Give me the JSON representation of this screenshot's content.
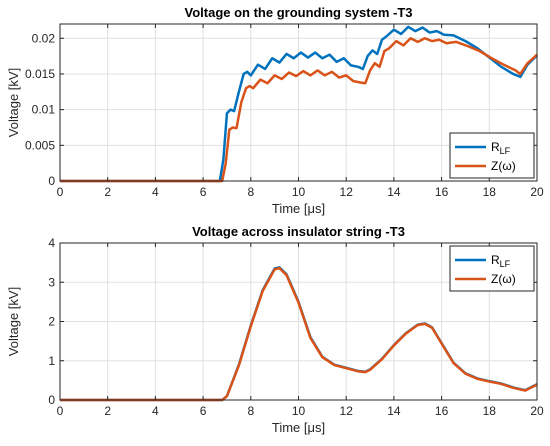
{
  "chart_data": [
    {
      "type": "line",
      "title": "Voltage on the grounding system -T3",
      "xlabel_main": "Time [",
      "xlabel_unit": "μs",
      "xlabel_end": "]",
      "ylabel": "Voltage [kV]",
      "xlim": [
        0,
        20
      ],
      "ylim": [
        0,
        0.022
      ],
      "xticks": [
        0,
        2,
        4,
        6,
        8,
        10,
        12,
        14,
        16,
        18,
        20
      ],
      "xtick_labels": [
        "0",
        "2",
        "4",
        "6",
        "8",
        "10",
        "12",
        "14",
        "16",
        "18",
        "20"
      ],
      "yticks": [
        0,
        0.005,
        0.01,
        0.015,
        0.02
      ],
      "ytick_labels": [
        "0",
        "0.005",
        "0.01",
        "0.015",
        "0.02"
      ],
      "grid": true,
      "legend_position": "bottom-right",
      "series": [
        {
          "legend_main": "R",
          "legend_sub": "LF",
          "color": "#0072BD",
          "x": [
            0,
            6.7,
            6.85,
            7.0,
            7.15,
            7.3,
            7.5,
            7.7,
            7.85,
            8.0,
            8.3,
            8.6,
            8.9,
            9.2,
            9.5,
            9.8,
            10.1,
            10.4,
            10.7,
            11.0,
            11.3,
            11.6,
            11.9,
            12.2,
            12.5,
            12.7,
            12.9,
            13.1,
            13.3,
            13.5,
            13.7,
            14.0,
            14.3,
            14.6,
            14.9,
            15.2,
            15.5,
            15.8,
            16.1,
            16.5,
            17.0,
            17.5,
            18.0,
            18.5,
            19.0,
            19.3,
            19.6,
            20.0
          ],
          "y": [
            0,
            0,
            0.003,
            0.0095,
            0.01,
            0.0098,
            0.0125,
            0.015,
            0.0153,
            0.0148,
            0.0163,
            0.0157,
            0.0172,
            0.0166,
            0.0178,
            0.0172,
            0.018,
            0.0173,
            0.018,
            0.0172,
            0.0177,
            0.0167,
            0.0172,
            0.0162,
            0.016,
            0.0157,
            0.0175,
            0.0183,
            0.0178,
            0.0198,
            0.0203,
            0.0212,
            0.0206,
            0.0216,
            0.021,
            0.0215,
            0.0208,
            0.021,
            0.0205,
            0.0204,
            0.0196,
            0.0186,
            0.0173,
            0.016,
            0.015,
            0.0146,
            0.0163,
            0.0176
          ]
        },
        {
          "legend_main": "Z(",
          "legend_sub": "ω",
          "legend_end": ")",
          "color": "#D95319",
          "x": [
            0,
            6.8,
            6.95,
            7.1,
            7.25,
            7.4,
            7.6,
            7.8,
            7.95,
            8.1,
            8.4,
            8.7,
            9.0,
            9.3,
            9.6,
            9.9,
            10.2,
            10.5,
            10.8,
            11.1,
            11.4,
            11.7,
            12.0,
            12.3,
            12.6,
            12.8,
            13.0,
            13.2,
            13.4,
            13.6,
            13.8,
            14.1,
            14.4,
            14.7,
            15.0,
            15.3,
            15.6,
            15.9,
            16.2,
            16.6,
            17.1,
            17.6,
            18.1,
            18.6,
            19.1,
            19.3,
            19.6,
            20.0
          ],
          "y": [
            0,
            0,
            0.0025,
            0.0072,
            0.0075,
            0.0074,
            0.011,
            0.013,
            0.0133,
            0.013,
            0.0142,
            0.0137,
            0.0148,
            0.0143,
            0.0152,
            0.0147,
            0.0154,
            0.0148,
            0.0155,
            0.0148,
            0.0153,
            0.0145,
            0.0148,
            0.014,
            0.0138,
            0.0137,
            0.0155,
            0.0165,
            0.016,
            0.0182,
            0.0186,
            0.0196,
            0.019,
            0.02,
            0.0195,
            0.02,
            0.0196,
            0.0198,
            0.0193,
            0.0195,
            0.0189,
            0.0182,
            0.0172,
            0.0163,
            0.0155,
            0.015,
            0.0165,
            0.0177
          ]
        }
      ]
    },
    {
      "type": "line",
      "title": "Voltage across insulator string -T3",
      "xlabel_main": "Time [",
      "xlabel_unit": "μs",
      "xlabel_end": "]",
      "ylabel": "Voltage [kV]",
      "xlim": [
        0,
        20
      ],
      "ylim": [
        0,
        4
      ],
      "xticks": [
        0,
        2,
        4,
        6,
        8,
        10,
        12,
        14,
        16,
        18,
        20
      ],
      "xtick_labels": [
        "0",
        "2",
        "4",
        "6",
        "8",
        "10",
        "12",
        "14",
        "16",
        "18",
        "20"
      ],
      "yticks": [
        0,
        1,
        2,
        3,
        4
      ],
      "ytick_labels": [
        "0",
        "1",
        "2",
        "3",
        "4"
      ],
      "grid": true,
      "legend_position": "top-right",
      "series": [
        {
          "legend_main": "R",
          "legend_sub": "LF",
          "color": "#0072BD",
          "x": [
            0,
            6.8,
            7.0,
            7.5,
            8.0,
            8.5,
            9.0,
            9.2,
            9.5,
            10.0,
            10.5,
            11.0,
            11.5,
            12.0,
            12.5,
            12.8,
            13.0,
            13.5,
            14.0,
            14.5,
            15.0,
            15.3,
            15.6,
            16.0,
            16.5,
            17.0,
            17.5,
            18.0,
            18.5,
            19.0,
            19.5,
            20.0
          ],
          "y": [
            0,
            0,
            0.1,
            0.9,
            1.9,
            2.8,
            3.35,
            3.38,
            3.2,
            2.5,
            1.6,
            1.1,
            0.9,
            0.82,
            0.74,
            0.72,
            0.78,
            1.05,
            1.4,
            1.7,
            1.92,
            1.95,
            1.85,
            1.45,
            0.95,
            0.68,
            0.55,
            0.48,
            0.42,
            0.32,
            0.25,
            0.4
          ]
        },
        {
          "legend_main": "Z(",
          "legend_sub": "ω",
          "legend_end": ")",
          "color": "#D95319",
          "x": [
            0,
            6.8,
            7.0,
            7.5,
            8.0,
            8.5,
            9.0,
            9.2,
            9.5,
            10.0,
            10.5,
            11.0,
            11.5,
            12.0,
            12.5,
            12.8,
            13.0,
            13.5,
            14.0,
            14.5,
            15.0,
            15.3,
            15.6,
            16.0,
            16.5,
            17.0,
            17.5,
            18.0,
            18.5,
            19.0,
            19.5,
            20.0
          ],
          "y": [
            0,
            0,
            0.1,
            0.88,
            1.88,
            2.78,
            3.33,
            3.36,
            3.18,
            2.48,
            1.58,
            1.09,
            0.89,
            0.81,
            0.73,
            0.71,
            0.77,
            1.04,
            1.39,
            1.69,
            1.91,
            1.94,
            1.84,
            1.44,
            0.94,
            0.67,
            0.54,
            0.47,
            0.41,
            0.31,
            0.24,
            0.39
          ]
        }
      ]
    }
  ]
}
